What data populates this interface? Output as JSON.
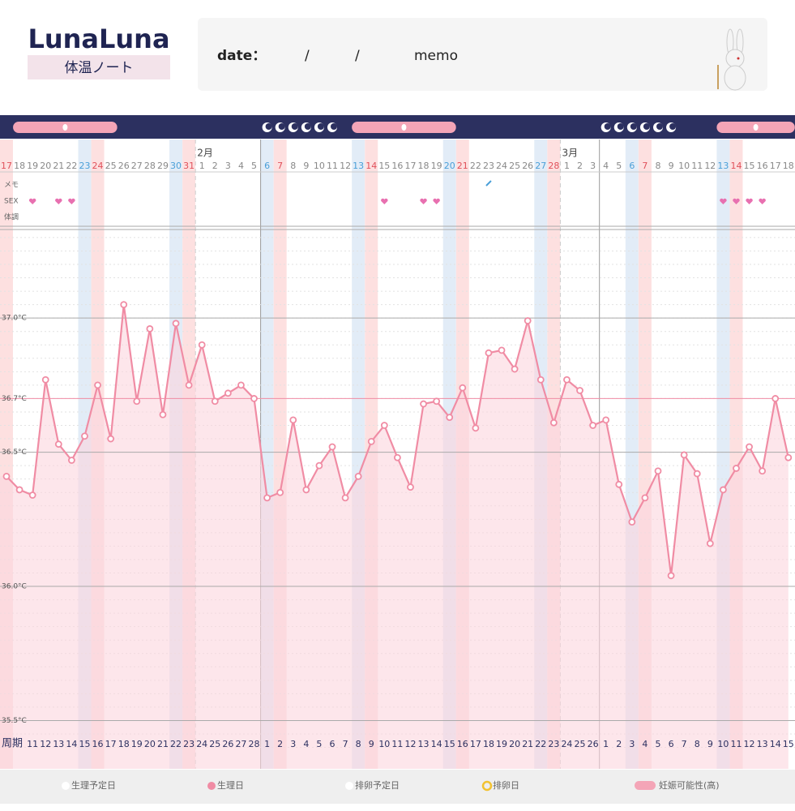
{
  "header": {
    "logo": "LunaLuna",
    "subtitle": "体温ノート",
    "date_label": "date：",
    "sep1": "/",
    "sep2": "/",
    "memo_label": "memo"
  },
  "chart_data": {
    "type": "line",
    "color": "#f08ca4",
    "categories": [
      17,
      18,
      19,
      20,
      21,
      22,
      23,
      24,
      25,
      26,
      27,
      28,
      29,
      30,
      31,
      1,
      2,
      3,
      4,
      5,
      6,
      7,
      8,
      9,
      10,
      11,
      12,
      13,
      14,
      15,
      16,
      17,
      18,
      19,
      20,
      21,
      22,
      23,
      24,
      25,
      26,
      27,
      28,
      1,
      2,
      3,
      4,
      5,
      6,
      7,
      8,
      9,
      10,
      11,
      12,
      13,
      14,
      15,
      16,
      17,
      18
    ],
    "month_labels": [
      null,
      null,
      null,
      null,
      null,
      null,
      null,
      null,
      null,
      null,
      null,
      null,
      null,
      null,
      null,
      "2月",
      null,
      null,
      null,
      null,
      null,
      null,
      null,
      null,
      null,
      null,
      null,
      null,
      null,
      null,
      null,
      null,
      null,
      null,
      null,
      null,
      null,
      null,
      null,
      null,
      null,
      null,
      null,
      "3月",
      null,
      null,
      null,
      null,
      null,
      null,
      null,
      null,
      null,
      null,
      null,
      null,
      null,
      null,
      null,
      null,
      null
    ],
    "cycle_label": "周期",
    "cycle_days": [
      null,
      null,
      11,
      12,
      13,
      14,
      15,
      16,
      17,
      18,
      19,
      20,
      21,
      22,
      23,
      24,
      25,
      26,
      27,
      28,
      1,
      2,
      3,
      4,
      5,
      6,
      7,
      8,
      9,
      10,
      11,
      12,
      13,
      14,
      15,
      16,
      17,
      18,
      19,
      20,
      21,
      22,
      23,
      24,
      25,
      26,
      1,
      2,
      3,
      4,
      5,
      6,
      7,
      8,
      9,
      10,
      11,
      12,
      13,
      14,
      15
    ],
    "values": [
      36.41,
      36.36,
      36.34,
      36.77,
      36.53,
      36.47,
      36.56,
      36.75,
      36.55,
      37.05,
      36.69,
      36.96,
      36.64,
      36.98,
      36.75,
      36.9,
      36.69,
      36.72,
      36.75,
      36.7,
      36.33,
      36.35,
      36.62,
      36.36,
      36.45,
      36.52,
      36.33,
      36.41,
      36.54,
      36.6,
      36.48,
      36.37,
      36.68,
      36.69,
      36.63,
      36.74,
      36.59,
      36.87,
      36.88,
      36.81,
      36.99,
      36.77,
      36.61,
      36.77,
      36.73,
      36.6,
      36.62,
      36.38,
      36.24,
      36.33,
      36.43,
      36.04,
      36.49,
      36.42,
      36.16,
      36.36,
      36.44,
      36.52,
      36.43,
      36.7,
      36.48
    ],
    "row_labels": [
      "メモ",
      "SEX",
      "体調"
    ],
    "memo_marks": [
      37
    ],
    "sex_marks": [
      2,
      4,
      5,
      29,
      32,
      33,
      55,
      56,
      57,
      58
    ],
    "period_days": [
      20,
      21,
      22,
      23,
      24,
      25,
      46,
      47,
      48,
      49,
      50,
      51
    ],
    "fertile_windows": [
      [
        1,
        8
      ],
      [
        27,
        34
      ],
      [
        55,
        60
      ]
    ],
    "ylim": [
      35.32,
      37.33
    ],
    "yticks": [
      {
        "value": 35.5,
        "label": "35.5°C"
      },
      {
        "value": 36.0,
        "label": "36.0°C"
      },
      {
        "value": 36.5,
        "label": "36.5°C"
      },
      {
        "value": 36.7,
        "label": "36.7°C"
      },
      {
        "value": 37.0,
        "label": "37.0°C"
      }
    ],
    "grid": true
  },
  "legend": [
    "生理予定日",
    "生理日",
    "排卵予定日",
    "排卵日",
    "妊娠可能性(高)"
  ]
}
